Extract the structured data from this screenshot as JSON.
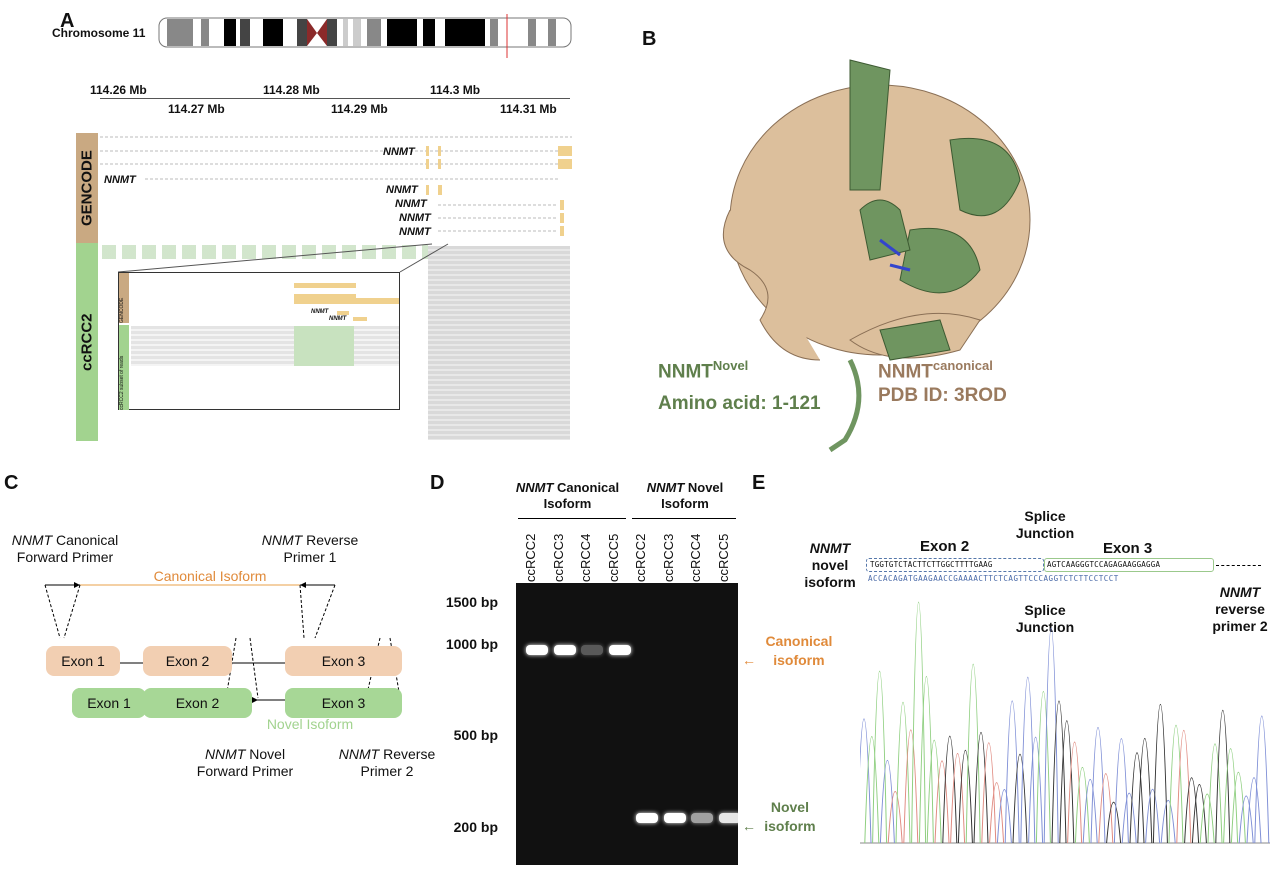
{
  "panels": {
    "a": "A",
    "b": "B",
    "c": "C",
    "d": "D",
    "e": "E"
  },
  "panel_a": {
    "chromosome": "Chromosome 11",
    "ticks_top": [
      "114.26 Mb",
      "114.28 Mb",
      "114.3 Mb"
    ],
    "ticks_bottom": [
      "114.27 Mb",
      "114.29 Mb",
      "114.31 Mb"
    ],
    "track_gencode": "GENCODE",
    "track_sample": "ccRCC2",
    "gene": "NNMT",
    "inset_gencode": "GENCODE",
    "inset_reads": "ccRCC2 subset of reads",
    "colors": {
      "gencode": "#c9a982",
      "sample": "#a2d38f",
      "exon": "#f0d18e",
      "reads": "#d9d9d9"
    }
  },
  "panel_b": {
    "novel_label": "NNMT",
    "novel_sup": "Novel",
    "novel_range": "Amino acid: 1-121",
    "canonical_label": "NNMT",
    "canonical_sup": "canonical",
    "canonical_pdb": "PDB ID: 3ROD",
    "colors": {
      "novel": "#5f7f4c",
      "canonical": "#9a7a5e"
    }
  },
  "panel_c": {
    "fwd_primer_gene": "NNMT",
    "fwd_primer": " Canonical",
    "fwd_primer2": "Forward Primer",
    "rev_primer_gene": "NNMT",
    "rev_primer": " Reverse",
    "rev_primer2": "Primer 1",
    "canonical_isoform": "Canonical Isoform",
    "novel_isoform": "Novel Isoform",
    "exons": [
      "Exon 1",
      "Exon 2",
      "Exon 3"
    ],
    "novel_fwd_gene": "NNMT",
    "novel_fwd": " Novel",
    "novel_fwd2": "Forward Primer",
    "rev2_gene": "NNMT",
    "rev2": " Reverse",
    "rev2_2": "Primer 2"
  },
  "panel_d": {
    "group1_gene": "NNMT",
    "group1": " Canonical",
    "group1b": "Isoform",
    "group2_gene": "NNMT",
    "group2": " Novel",
    "group2b": "Isoform",
    "lanes": [
      "ccRCC2",
      "ccRCC3",
      "ccRCC4",
      "ccRCC5",
      "ccRCC2",
      "ccRCC3",
      "ccRCC4",
      "ccRCC5"
    ],
    "ladder": [
      "1500 bp",
      "1000 bp",
      "500 bp",
      "200 bp"
    ],
    "canonical_label": "Canonical isoform",
    "novel_label": "Novel isoform",
    "canonical_band_intensity": [
      1,
      1,
      0.3,
      1,
      0,
      0,
      0,
      0
    ],
    "novel_band_intensity": [
      0,
      0,
      0,
      0,
      1,
      1,
      0.6,
      0.9
    ]
  },
  "panel_e": {
    "isoform_gene": "NNMT",
    "isoform_l1": "novel",
    "isoform_l2": "isoform",
    "exon2": "Exon 2",
    "exon3": "Exon 3",
    "splice_top": "Splice Junction",
    "splice_bottom": "Splice Junction",
    "seq_exon2": "TGGTGTCTACTTCTTGGCTTTTGAAG",
    "seq_exon3": "AGTCAAGGGTCCAGAGAAGGAGGA",
    "seq_read": "ACCACAGATGAAGAACCGAAAACTTCTCAGTTCCCAGGTCTCTTCCTCCT",
    "primer_gene": "NNMT",
    "primer_l1": "reverse",
    "primer_l2": "primer 2"
  }
}
